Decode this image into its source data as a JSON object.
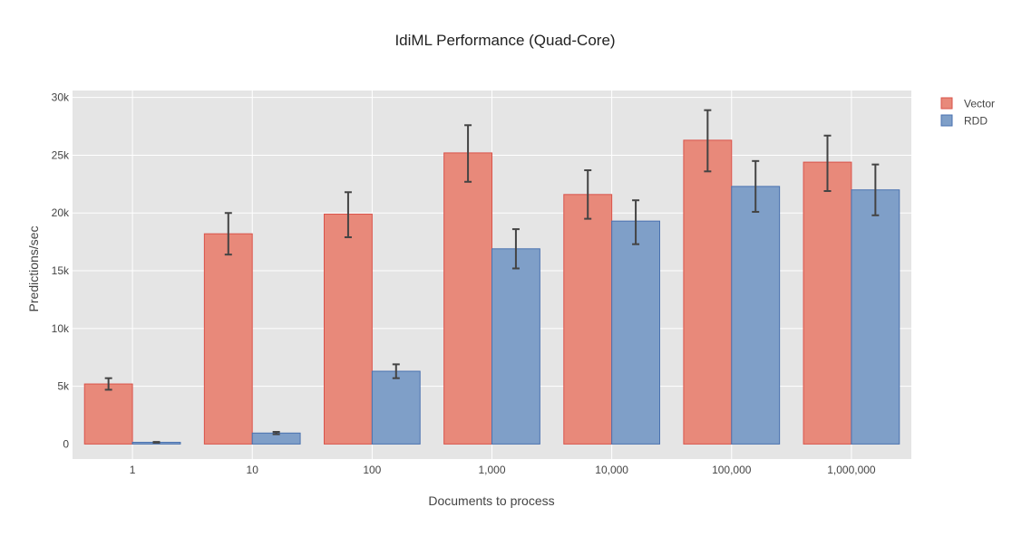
{
  "chart_data": {
    "type": "bar",
    "title": "IdiML Performance (Quad-Core)",
    "xlabel": "Documents to process",
    "ylabel": "Predictions/sec",
    "categories": [
      "1",
      "10",
      "100",
      "1,000",
      "10,000",
      "100,000",
      "1,000,000"
    ],
    "y_ticks": [
      0,
      5000,
      10000,
      15000,
      20000,
      25000,
      30000
    ],
    "y_tick_labels": [
      "0",
      "5k",
      "10k",
      "15k",
      "20k",
      "25k",
      "30k"
    ],
    "ylim": [
      -1300,
      30600
    ],
    "grid": true,
    "legend_position": "top-right",
    "series": [
      {
        "name": "Vector",
        "fill": "#e8897a",
        "stroke": "#d9534a",
        "values": [
          5200,
          18200,
          19900,
          25200,
          21600,
          26300,
          24400
        ],
        "error_low": [
          4700,
          16400,
          17900,
          22700,
          19500,
          23600,
          21900
        ],
        "error_high": [
          5700,
          20000,
          21800,
          27600,
          23700,
          28900,
          26700
        ]
      },
      {
        "name": "RDD",
        "fill": "#7f9fc8",
        "stroke": "#4a72b0",
        "values": [
          150,
          950,
          6300,
          16900,
          19300,
          22300,
          22000
        ],
        "error_low": [
          120,
          850,
          5700,
          15200,
          17300,
          20100,
          19800
        ],
        "error_high": [
          180,
          1050,
          6900,
          18600,
          21100,
          24500,
          24200
        ]
      }
    ],
    "colors": {
      "plot_background": "#e5e5e5",
      "gridline": "#ffffff",
      "error_bar": "#444444"
    }
  }
}
